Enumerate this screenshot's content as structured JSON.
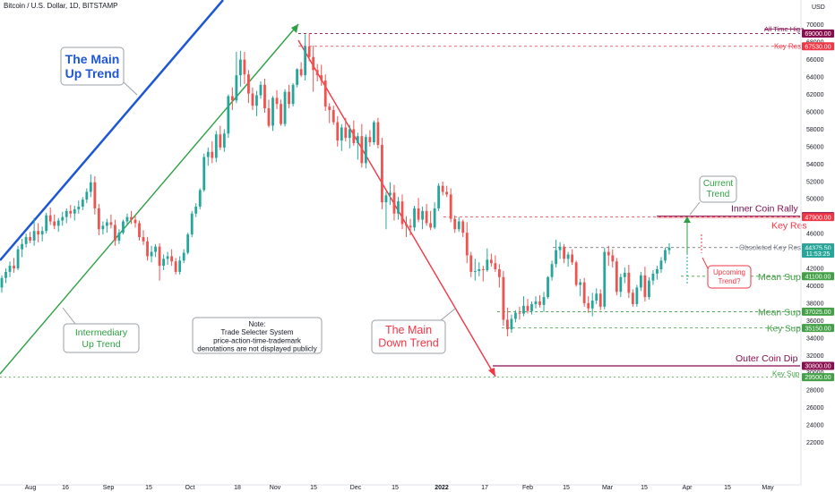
{
  "header": {
    "title": "Bitcoin / U.S. Dollar, 1D, BITSTAMP"
  },
  "chart_data": {
    "type": "candlestick",
    "currency": "USD",
    "ylim": [
      20000,
      71000
    ],
    "y_ticks": [
      22000,
      24000,
      26000,
      28000,
      30000,
      32000,
      34000,
      36000,
      38000,
      40000,
      42000,
      44000,
      46000,
      48000,
      50000,
      52000,
      54000,
      56000,
      58000,
      60000,
      62000,
      64000,
      66000,
      68000,
      70000
    ],
    "x_ticks": [
      "Aug",
      "16",
      "Sep",
      "15",
      "Oct",
      "18",
      "Nov",
      "15",
      "Dec",
      "15",
      "2022",
      "17",
      "Feb",
      "15",
      "Mar",
      "15",
      "Apr",
      "15",
      "May"
    ],
    "price_tags": [
      {
        "value": 69000,
        "text": "69000.00",
        "color": "#880e4f"
      },
      {
        "value": 67530,
        "text": "67530.00",
        "color": "#f23645"
      },
      {
        "value": 48000,
        "text": "48000.00",
        "color": "#880e4f"
      },
      {
        "value": 47900,
        "text": "47900.00",
        "color": "#f23645"
      },
      {
        "value": 44400,
        "text": "44400.00",
        "color": "#131722"
      },
      {
        "value": 44375.5,
        "text": "44375.50",
        "color": "#26a69a"
      },
      {
        "value": 43700,
        "text": "11:53:25",
        "color": "#26a69a"
      },
      {
        "value": 41100,
        "text": "41100.00",
        "color": "#43a047"
      },
      {
        "value": 37025,
        "text": "37025.00",
        "color": "#43a047"
      },
      {
        "value": 35150,
        "text": "35150.00",
        "color": "#43a047"
      },
      {
        "value": 30800,
        "text": "30800.00",
        "color": "#880e4f"
      },
      {
        "value": 29500,
        "text": "29500.00",
        "color": "#43a047"
      }
    ],
    "levels": [
      {
        "value": 69000,
        "label": "All Time High",
        "color": "#880e4f"
      },
      {
        "value": 67530,
        "label": "Key Res",
        "color": "#f23645"
      },
      {
        "value": 48000,
        "label": "Inner Coin Rally",
        "color": "#880e4f"
      },
      {
        "value": 47900,
        "label": "Key Res",
        "color": "#f23645"
      },
      {
        "value": 44400,
        "label": "Obsoleted Key Res",
        "color": "#787b86"
      },
      {
        "value": 41100,
        "label": "Mean Sup",
        "color": "#43a047"
      },
      {
        "value": 37025,
        "label": "Mean Sup",
        "color": "#43a047"
      },
      {
        "value": 35150,
        "label": "Key Sup",
        "color": "#43a047"
      },
      {
        "value": 30800,
        "label": "Outer Coin Dip",
        "color": "#880e4f"
      },
      {
        "value": 29500,
        "label": "Key Sup",
        "color": "#43a047"
      }
    ],
    "annotations": {
      "main_up": "The Main\nUp Trend",
      "intermediary_up": "Intermediary\nUp Trend",
      "note": "Note:\nTrade Selecter System\nprice-action-time-trademark\ndenotations are not displayed publicly",
      "main_down": "The Main\nDown Trend",
      "current_trend": "Current\nTrend",
      "upcoming_trend": "Upcoming\nTrend?"
    },
    "candles": [
      [
        39800,
        41200,
        39200,
        40900
      ],
      [
        40900,
        42000,
        40300,
        41600
      ],
      [
        41600,
        42800,
        41000,
        42300
      ],
      [
        42300,
        43200,
        41500,
        42000
      ],
      [
        42000,
        44600,
        41800,
        44200
      ],
      [
        44200,
        45400,
        43300,
        44800
      ],
      [
        44800,
        46000,
        44400,
        45600
      ],
      [
        45600,
        46200,
        44900,
        45200
      ],
      [
        45200,
        47800,
        44600,
        46300
      ],
      [
        46300,
        47200,
        45000,
        45900
      ],
      [
        45900,
        46800,
        45100,
        46300
      ],
      [
        46300,
        48400,
        46000,
        48100
      ],
      [
        48100,
        49000,
        47000,
        47400
      ],
      [
        47400,
        48200,
        46500,
        46900
      ],
      [
        46900,
        47800,
        46200,
        47500
      ],
      [
        47500,
        48500,
        46900,
        47900
      ],
      [
        47900,
        48900,
        47200,
        48600
      ],
      [
        48600,
        49300,
        47800,
        48300
      ],
      [
        48300,
        49200,
        47500,
        48800
      ],
      [
        48800,
        49800,
        48300,
        49100
      ],
      [
        49100,
        50200,
        48700,
        49900
      ],
      [
        49900,
        51200,
        49500,
        50800
      ],
      [
        50800,
        52800,
        50200,
        51900
      ],
      [
        51900,
        52600,
        48200,
        48900
      ],
      [
        48900,
        49400,
        45800,
        46500
      ],
      [
        46500,
        47400,
        45900,
        46900
      ],
      [
        46900,
        47700,
        46100,
        47300
      ],
      [
        47300,
        48200,
        46600,
        47000
      ],
      [
        47000,
        47600,
        44600,
        45200
      ],
      [
        45200,
        46500,
        44800,
        46100
      ],
      [
        46100,
        47600,
        45900,
        47400
      ],
      [
        47400,
        48300,
        46900,
        47900
      ],
      [
        47900,
        48600,
        47100,
        47600
      ],
      [
        47600,
        48100,
        46700,
        47200
      ],
      [
        47200,
        47500,
        45200,
        45600
      ],
      [
        45600,
        46400,
        44700,
        45100
      ],
      [
        45100,
        45600,
        42900,
        43400
      ],
      [
        43400,
        44600,
        42700,
        43900
      ],
      [
        43900,
        44800,
        43300,
        44500
      ],
      [
        44500,
        44900,
        40600,
        42300
      ],
      [
        42300,
        43600,
        41800,
        43100
      ],
      [
        43100,
        43900,
        42400,
        43400
      ],
      [
        43400,
        44200,
        42300,
        42800
      ],
      [
        42800,
        43200,
        41300,
        41600
      ],
      [
        41600,
        43400,
        41300,
        42900
      ],
      [
        42900,
        44200,
        42600,
        43800
      ],
      [
        43800,
        46100,
        43600,
        45900
      ],
      [
        45900,
        48600,
        45600,
        48300
      ],
      [
        48300,
        49500,
        47900,
        49100
      ],
      [
        49100,
        51200,
        48800,
        51000
      ],
      [
        51000,
        55200,
        50800,
        54800
      ],
      [
        54800,
        55900,
        53800,
        55400
      ],
      [
        55400,
        56600,
        54100,
        54700
      ],
      [
        54700,
        57800,
        54200,
        57400
      ],
      [
        57400,
        58400,
        55600,
        55900
      ],
      [
        55900,
        58000,
        55400,
        57500
      ],
      [
        57500,
        62000,
        57000,
        61800
      ],
      [
        61800,
        62800,
        60200,
        61300
      ],
      [
        61300,
        66900,
        61000,
        64200
      ],
      [
        64200,
        67000,
        62900,
        66000
      ],
      [
        66000,
        66900,
        63200,
        64300
      ],
      [
        64300,
        64800,
        61000,
        62100
      ],
      [
        62100,
        62800,
        60200,
        60700
      ],
      [
        60700,
        62400,
        59500,
        61900
      ],
      [
        61900,
        63500,
        61500,
        63100
      ],
      [
        63100,
        63800,
        59900,
        60400
      ],
      [
        60400,
        61400,
        58200,
        58400
      ],
      [
        58400,
        61800,
        57800,
        61600
      ],
      [
        61600,
        62500,
        60300,
        60900
      ],
      [
        60900,
        61400,
        58400,
        58600
      ],
      [
        58600,
        62600,
        58300,
        62300
      ],
      [
        62300,
        63100,
        60400,
        60900
      ],
      [
        60900,
        63300,
        60600,
        63100
      ],
      [
        63100,
        65000,
        62800,
        64900
      ],
      [
        64900,
        65700,
        64000,
        64200
      ],
      [
        64200,
        68900,
        63600,
        67500
      ],
      [
        67500,
        69000,
        65800,
        66300
      ],
      [
        66300,
        67600,
        62300,
        64800
      ],
      [
        64800,
        65500,
        63500,
        64200
      ],
      [
        64200,
        65400,
        63000,
        63600
      ],
      [
        63600,
        64300,
        60100,
        60600
      ],
      [
        60600,
        61000,
        58700,
        60200
      ],
      [
        60200,
        60700,
        58500,
        58800
      ],
      [
        58800,
        59500,
        56000,
        56700
      ],
      [
        56700,
        58600,
        55500,
        58200
      ],
      [
        58200,
        59300,
        56600,
        57000
      ],
      [
        57000,
        58500,
        55800,
        58000
      ],
      [
        58000,
        59000,
        56100,
        56400
      ],
      [
        56400,
        57600,
        54500,
        57200
      ],
      [
        57200,
        58600,
        53600,
        54100
      ],
      [
        54100,
        57400,
        53500,
        57100
      ],
      [
        57100,
        57900,
        56000,
        56500
      ],
      [
        56500,
        59000,
        56200,
        58800
      ],
      [
        58800,
        59300,
        55800,
        56200
      ],
      [
        56200,
        57000,
        48800,
        49600
      ],
      [
        49600,
        50800,
        46500,
        50400
      ],
      [
        50400,
        51900,
        49300,
        50700
      ],
      [
        50700,
        51600,
        47500,
        48300
      ],
      [
        48300,
        50200,
        47600,
        49700
      ],
      [
        49700,
        50500,
        46500,
        47100
      ],
      [
        47100,
        48000,
        45600,
        46900
      ],
      [
        46900,
        47700,
        45800,
        46700
      ],
      [
        46700,
        49200,
        46300,
        48900
      ],
      [
        48900,
        50100,
        47300,
        47600
      ],
      [
        47600,
        49100,
        46500,
        48600
      ],
      [
        48600,
        49400,
        46900,
        47200
      ],
      [
        47200,
        48600,
        46400,
        46700
      ],
      [
        46700,
        49600,
        46500,
        48900
      ],
      [
        48900,
        51800,
        48600,
        51500
      ],
      [
        51500,
        52000,
        50400,
        50800
      ],
      [
        50800,
        51500,
        50200,
        50500
      ],
      [
        50500,
        51200,
        47300,
        47700
      ],
      [
        47700,
        48100,
        46100,
        46500
      ],
      [
        46500,
        47900,
        46200,
        47400
      ],
      [
        47400,
        47600,
        45600,
        46100
      ],
      [
        46100,
        47300,
        42600,
        43500
      ],
      [
        43500,
        43900,
        41000,
        41600
      ],
      [
        41600,
        43100,
        40600,
        41700
      ],
      [
        41700,
        42700,
        41100,
        41900
      ],
      [
        41900,
        42300,
        40500,
        41800
      ],
      [
        41800,
        44300,
        41600,
        43000
      ],
      [
        43000,
        43700,
        42200,
        42600
      ],
      [
        42600,
        43500,
        41600,
        41900
      ],
      [
        41900,
        42500,
        39800,
        41000
      ],
      [
        41000,
        41700,
        35400,
        36100
      ],
      [
        36100,
        37500,
        34200,
        35000
      ],
      [
        35000,
        36700,
        34600,
        36200
      ],
      [
        36200,
        37200,
        35800,
        36900
      ],
      [
        36900,
        37600,
        36100,
        36800
      ],
      [
        36800,
        38800,
        36500,
        37700
      ],
      [
        37700,
        38500,
        36800,
        37100
      ],
      [
        37100,
        38200,
        36700,
        37900
      ],
      [
        37900,
        38800,
        37400,
        38200
      ],
      [
        38200,
        38900,
        37500,
        37800
      ],
      [
        37800,
        39300,
        37000,
        38700
      ],
      [
        38700,
        41100,
        38500,
        41000
      ],
      [
        41000,
        42900,
        40600,
        42500
      ],
      [
        42500,
        45300,
        42100,
        44100
      ],
      [
        44100,
        45000,
        43100,
        44500
      ],
      [
        44500,
        44800,
        42600,
        43100
      ],
      [
        43100,
        43900,
        42200,
        43600
      ],
      [
        43600,
        44200,
        42400,
        42700
      ],
      [
        42700,
        42900,
        39900,
        40100
      ],
      [
        40100,
        40800,
        38800,
        40400
      ],
      [
        40400,
        40900,
        37600,
        38000
      ],
      [
        38000,
        38800,
        36900,
        37400
      ],
      [
        37400,
        39200,
        36500,
        38300
      ],
      [
        38300,
        39700,
        37900,
        39100
      ],
      [
        39100,
        39600,
        37200,
        37600
      ],
      [
        37600,
        44400,
        37300,
        43900
      ],
      [
        43900,
        44600,
        42300,
        43500
      ],
      [
        43500,
        44200,
        42100,
        42800
      ],
      [
        42800,
        43200,
        38900,
        39300
      ],
      [
        39300,
        41400,
        38700,
        41000
      ],
      [
        41000,
        42100,
        40300,
        41500
      ],
      [
        41500,
        42400,
        38600,
        39200
      ],
      [
        39200,
        39600,
        37600,
        37900
      ],
      [
        37900,
        40100,
        37600,
        39800
      ],
      [
        39800,
        41600,
        39400,
        41200
      ],
      [
        41200,
        42200,
        38200,
        38700
      ],
      [
        38700,
        41000,
        38400,
        40600
      ],
      [
        40600,
        41800,
        40100,
        41400
      ],
      [
        41400,
        42300,
        40700,
        41900
      ],
      [
        41900,
        43300,
        41500,
        42900
      ],
      [
        42900,
        44400,
        42600,
        44100
      ],
      [
        44100,
        44900,
        43600,
        44375.5
      ]
    ]
  }
}
